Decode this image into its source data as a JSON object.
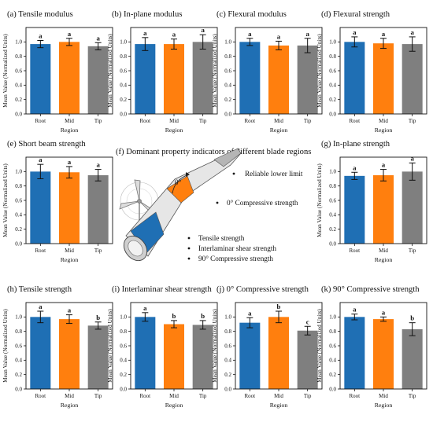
{
  "colors": {
    "root": "#1f6fb4",
    "mid": "#ff7f0e",
    "tip": "#7f7f7f"
  },
  "ylabel": "Mean Value (Normalized Units)",
  "xlabel": "Region",
  "chart_data": [
    {
      "id": "a",
      "type": "bar",
      "title": "(a) Tensile modulus",
      "categories": [
        "Root",
        "Mid",
        "Tip"
      ],
      "values": [
        0.97,
        1.0,
        0.94
      ],
      "errors": [
        0.05,
        0.05,
        0.05
      ],
      "letters": [
        "a",
        "a",
        "a"
      ],
      "ylim": [
        0,
        1.2
      ],
      "yticks": [
        "0.0",
        "0.2",
        "0.4",
        "0.6",
        "0.8",
        "1.0"
      ],
      "xlabel": "Region",
      "ylabel": "Mean Value (Normalized Units)"
    },
    {
      "id": "b",
      "type": "bar",
      "title": "(b) In-plane modulus",
      "categories": [
        "Root",
        "Mid",
        "Tip"
      ],
      "values": [
        0.97,
        0.97,
        1.0
      ],
      "errors": [
        0.09,
        0.07,
        0.1
      ],
      "letters": [
        "a",
        "a",
        "a"
      ],
      "ylim": [
        0,
        1.2
      ],
      "yticks": [
        "0.0",
        "0.2",
        "0.4",
        "0.6",
        "0.8",
        "1.0"
      ],
      "xlabel": "Region",
      "ylabel": "Mean Value (Normalized Units)"
    },
    {
      "id": "c",
      "type": "bar",
      "title": "(c) Flexural modulus",
      "categories": [
        "Root",
        "Mid",
        "Tip"
      ],
      "values": [
        1.0,
        0.95,
        0.95
      ],
      "errors": [
        0.05,
        0.06,
        0.1
      ],
      "letters": [
        "a",
        "a",
        "a"
      ],
      "ylim": [
        0,
        1.2
      ],
      "yticks": [
        "0.0",
        "0.2",
        "0.4",
        "0.6",
        "0.8",
        "1.0"
      ],
      "xlabel": "Region",
      "ylabel": "Mean Value (Normalized Units)"
    },
    {
      "id": "d",
      "type": "bar",
      "title": "(d) Flexural strength",
      "categories": [
        "Root",
        "Mid",
        "Tip"
      ],
      "values": [
        1.0,
        0.98,
        0.97
      ],
      "errors": [
        0.07,
        0.07,
        0.1
      ],
      "letters": [
        "a",
        "a",
        "a"
      ],
      "ylim": [
        0,
        1.2
      ],
      "yticks": [
        "0.0",
        "0.2",
        "0.4",
        "0.6",
        "0.8",
        "1.0"
      ],
      "xlabel": "Region",
      "ylabel": "Mean Value (Normalized Units)"
    },
    {
      "id": "e",
      "type": "bar",
      "title": "(e) Short beam strength",
      "categories": [
        "Root",
        "Mid",
        "Tip"
      ],
      "values": [
        1.0,
        0.99,
        0.95
      ],
      "errors": [
        0.1,
        0.08,
        0.08
      ],
      "letters": [
        "a",
        "a",
        "a"
      ],
      "ylim": [
        0,
        1.2
      ],
      "yticks": [
        "0.0",
        "0.2",
        "0.4",
        "0.6",
        "0.8",
        "1.0"
      ],
      "xlabel": "Region",
      "ylabel": "Mean Value (Normalized Units)"
    },
    {
      "id": "g",
      "type": "bar",
      "title": "(g) In-plane strength",
      "categories": [
        "Root",
        "Mid",
        "Tip"
      ],
      "values": [
        0.94,
        0.95,
        1.0
      ],
      "errors": [
        0.05,
        0.08,
        0.12
      ],
      "letters": [
        "a",
        "a",
        "a"
      ],
      "ylim": [
        0,
        1.2
      ],
      "yticks": [
        "0.0",
        "0.2",
        "0.4",
        "0.6",
        "0.8",
        "1.0"
      ],
      "xlabel": "Region",
      "ylabel": "Mean Value (Normalized Units)"
    },
    {
      "id": "h",
      "type": "bar",
      "title": "(h) Tensile strength",
      "categories": [
        "Root",
        "Mid",
        "Tip"
      ],
      "values": [
        1.0,
        0.97,
        0.88
      ],
      "errors": [
        0.08,
        0.06,
        0.05
      ],
      "letters": [
        "a",
        "a",
        "b"
      ],
      "ylim": [
        0,
        1.2
      ],
      "yticks": [
        "0.0",
        "0.2",
        "0.4",
        "0.6",
        "0.8",
        "1.0"
      ],
      "xlabel": "Region",
      "ylabel": "Mean Value (Normalized Units)"
    },
    {
      "id": "i",
      "type": "bar",
      "title": "(i) Interlaminar shear strength",
      "categories": [
        "Root",
        "Mid",
        "Tip"
      ],
      "values": [
        1.0,
        0.9,
        0.89
      ],
      "errors": [
        0.06,
        0.05,
        0.06
      ],
      "letters": [
        "a",
        "b",
        "b"
      ],
      "ylim": [
        0,
        1.2
      ],
      "yticks": [
        "0.0",
        "0.2",
        "0.4",
        "0.6",
        "0.8",
        "1.0"
      ],
      "xlabel": "Region",
      "ylabel": "Mean Value (Normalized Units)"
    },
    {
      "id": "j",
      "type": "bar",
      "title": "(j) 0° Compressive strength",
      "categories": [
        "Root",
        "Mid",
        "Tip"
      ],
      "values": [
        0.92,
        1.0,
        0.81
      ],
      "errors": [
        0.07,
        0.08,
        0.06
      ],
      "letters": [
        "a",
        "b",
        "c"
      ],
      "ylim": [
        0,
        1.2
      ],
      "yticks": [
        "0.0",
        "0.2",
        "0.4",
        "0.6",
        "0.8",
        "1.0"
      ],
      "xlabel": "Region",
      "ylabel": "Mean Value (Normalized Units)"
    },
    {
      "id": "k",
      "type": "bar",
      "title": "(k) 90° Compressive strength",
      "categories": [
        "Root",
        "Mid",
        "Tip"
      ],
      "values": [
        1.0,
        0.97,
        0.83
      ],
      "errors": [
        0.04,
        0.03,
        0.09
      ],
      "letters": [
        "a",
        "a",
        "b"
      ],
      "ylim": [
        0,
        1.2
      ],
      "yticks": [
        "0.0",
        "0.2",
        "0.4",
        "0.6",
        "0.8",
        "1.0"
      ],
      "xlabel": "Region",
      "ylabel": "Mean Value (Normalized Units)"
    }
  ],
  "diagram": {
    "title": "(f) Dominant property indicators of different blade regions",
    "angle_label": "0°",
    "labels": {
      "reliable": "Reliable lower limit",
      "comp0": "0° Compressive strength",
      "tensile": "Tensile strength",
      "interlaminar": "Interlaminar shear strength",
      "comp90": "90° Compressive strength"
    }
  }
}
